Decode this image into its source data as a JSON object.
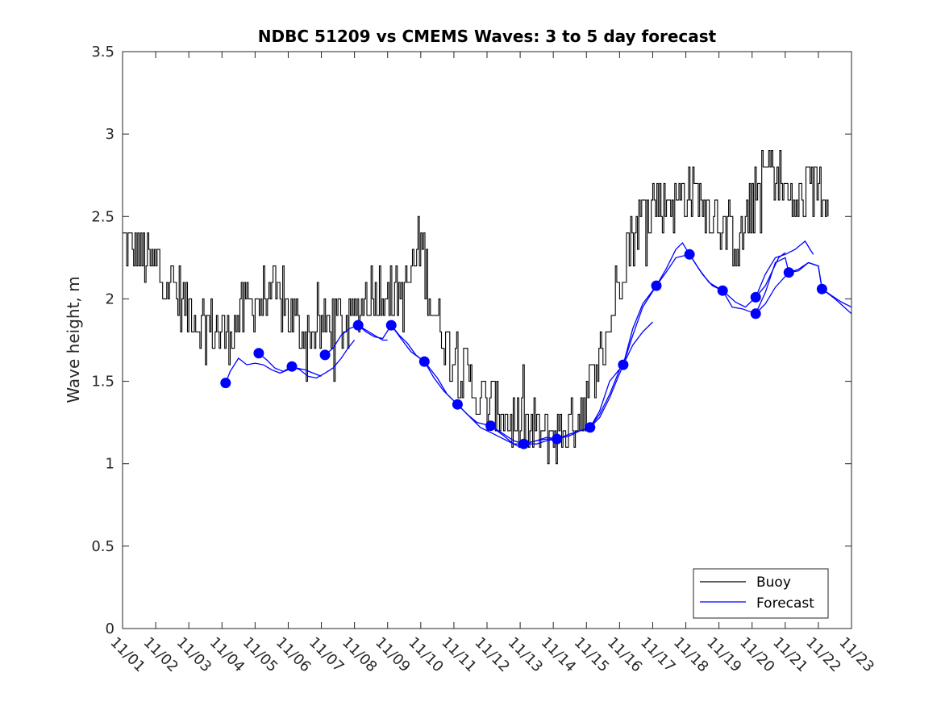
{
  "chart_data": {
    "type": "line",
    "title": "NDBC 51209 vs CMEMS Waves: 3 to 5 day forecast",
    "xlabel": "",
    "ylabel": "Wave height, m",
    "xlim": [
      0,
      22
    ],
    "ylim": [
      0,
      3.5
    ],
    "grid": false,
    "legend_position": "bottom-right",
    "x_tick_labels": [
      "11/01",
      "11/02",
      "11/03",
      "11/04",
      "11/05",
      "11/06",
      "11/07",
      "11/08",
      "11/09",
      "11/10",
      "11/11",
      "11/12",
      "11/13",
      "11/14",
      "11/15",
      "11/16",
      "11/17",
      "11/18",
      "11/19",
      "11/20",
      "11/21",
      "11/22",
      "11/23"
    ],
    "y_ticks": [
      0,
      0.5,
      1,
      1.5,
      2,
      2.5,
      3,
      3.5
    ],
    "y_tick_labels": [
      "0",
      "0.5",
      "1",
      "1.5",
      "2",
      "2.5",
      "3",
      "3.5"
    ],
    "colors": {
      "buoy": "#000000",
      "forecast": "#0000ff",
      "axis": "#262626"
    },
    "buoy": {
      "name": "Buoy",
      "anchors": [
        [
          0.0,
          2.35
        ],
        [
          0.25,
          2.3
        ],
        [
          0.5,
          2.3
        ],
        [
          0.75,
          2.2
        ],
        [
          1.0,
          2.2
        ],
        [
          1.25,
          2.15
        ],
        [
          1.5,
          2.1
        ],
        [
          1.75,
          2.0
        ],
        [
          2.0,
          1.95
        ],
        [
          2.25,
          1.85
        ],
        [
          2.5,
          1.85
        ],
        [
          2.75,
          1.82
        ],
        [
          3.0,
          1.8
        ],
        [
          3.25,
          1.8
        ],
        [
          3.5,
          1.9
        ],
        [
          3.75,
          1.95
        ],
        [
          4.0,
          2.0
        ],
        [
          4.25,
          2.0
        ],
        [
          4.5,
          2.0
        ],
        [
          4.75,
          2.0
        ],
        [
          5.0,
          1.95
        ],
        [
          5.25,
          1.85
        ],
        [
          5.5,
          1.8
        ],
        [
          5.75,
          1.8
        ],
        [
          6.0,
          1.82
        ],
        [
          6.25,
          1.85
        ],
        [
          6.5,
          1.85
        ],
        [
          6.75,
          1.85
        ],
        [
          7.0,
          1.9
        ],
        [
          7.25,
          2.0
        ],
        [
          7.5,
          2.05
        ],
        [
          7.75,
          2.05
        ],
        [
          8.0,
          2.05
        ],
        [
          8.25,
          2.0
        ],
        [
          8.5,
          2.0
        ],
        [
          8.75,
          2.2
        ],
        [
          9.0,
          2.35
        ],
        [
          9.25,
          2.05
        ],
        [
          9.5,
          1.85
        ],
        [
          9.75,
          1.75
        ],
        [
          10.0,
          1.65
        ],
        [
          10.25,
          1.55
        ],
        [
          10.5,
          1.5
        ],
        [
          10.75,
          1.4
        ],
        [
          11.0,
          1.35
        ],
        [
          11.25,
          1.35
        ],
        [
          11.5,
          1.3
        ],
        [
          11.75,
          1.25
        ],
        [
          12.0,
          1.22
        ],
        [
          12.25,
          1.2
        ],
        [
          12.5,
          1.2
        ],
        [
          12.75,
          1.18
        ],
        [
          13.0,
          1.18
        ],
        [
          13.25,
          1.2
        ],
        [
          13.5,
          1.25
        ],
        [
          13.75,
          1.3
        ],
        [
          14.0,
          1.4
        ],
        [
          14.25,
          1.55
        ],
        [
          14.5,
          1.7
        ],
        [
          14.75,
          1.9
        ],
        [
          15.0,
          2.15
        ],
        [
          15.25,
          2.35
        ],
        [
          15.5,
          2.45
        ],
        [
          15.75,
          2.55
        ],
        [
          16.0,
          2.6
        ],
        [
          16.25,
          2.55
        ],
        [
          16.5,
          2.6
        ],
        [
          16.75,
          2.6
        ],
        [
          17.0,
          2.65
        ],
        [
          17.25,
          2.65
        ],
        [
          17.5,
          2.6
        ],
        [
          17.75,
          2.55
        ],
        [
          18.0,
          2.5
        ],
        [
          18.25,
          2.4
        ],
        [
          18.5,
          2.35
        ],
        [
          18.75,
          2.4
        ],
        [
          19.0,
          2.55
        ],
        [
          19.25,
          2.7
        ],
        [
          19.5,
          2.8
        ],
        [
          19.75,
          2.75
        ],
        [
          20.0,
          2.65
        ],
        [
          20.25,
          2.55
        ],
        [
          20.5,
          2.6
        ],
        [
          20.75,
          2.65
        ],
        [
          21.0,
          2.7
        ],
        [
          21.3,
          2.65
        ]
      ]
    },
    "forecast": {
      "name": "Forecast",
      "daily_markers": [
        [
          3.11,
          1.49
        ],
        [
          4.11,
          1.67
        ],
        [
          5.11,
          1.59
        ],
        [
          6.11,
          1.66
        ],
        [
          7.11,
          1.84
        ],
        [
          8.11,
          1.84
        ],
        [
          9.11,
          1.62
        ],
        [
          10.11,
          1.36
        ],
        [
          11.11,
          1.23
        ],
        [
          12.11,
          1.12
        ],
        [
          13.11,
          1.15
        ],
        [
          14.11,
          1.22
        ],
        [
          15.11,
          1.6
        ],
        [
          16.11,
          2.08
        ],
        [
          17.11,
          2.27
        ],
        [
          18.11,
          2.05
        ],
        [
          19.11,
          2.01
        ],
        [
          19.11,
          1.91
        ],
        [
          20.11,
          2.16
        ],
        [
          21.11,
          2.06
        ]
      ],
      "runs": [
        [
          [
            3.11,
            1.49
          ],
          [
            3.25,
            1.56
          ],
          [
            3.5,
            1.64
          ],
          [
            3.75,
            1.6
          ],
          [
            4.0,
            1.61
          ],
          [
            4.25,
            1.6
          ],
          [
            4.5,
            1.57
          ],
          [
            4.75,
            1.55
          ],
          [
            5.0,
            1.57
          ],
          [
            5.25,
            1.58
          ],
          [
            5.5,
            1.57
          ],
          [
            5.75,
            1.55
          ],
          [
            6.0,
            1.53
          ]
        ],
        [
          [
            4.11,
            1.67
          ],
          [
            4.35,
            1.63
          ],
          [
            4.6,
            1.58
          ],
          [
            4.85,
            1.56
          ],
          [
            5.11,
            1.59
          ],
          [
            5.35,
            1.57
          ],
          [
            5.6,
            1.53
          ],
          [
            5.85,
            1.52
          ],
          [
            6.11,
            1.55
          ],
          [
            6.35,
            1.58
          ],
          [
            6.6,
            1.64
          ],
          [
            6.8,
            1.7
          ],
          [
            7.0,
            1.75
          ]
        ],
        [
          [
            6.11,
            1.66
          ],
          [
            6.35,
            1.7
          ],
          [
            6.6,
            1.78
          ],
          [
            6.85,
            1.82
          ],
          [
            7.11,
            1.84
          ],
          [
            7.35,
            1.8
          ],
          [
            7.6,
            1.77
          ],
          [
            7.85,
            1.76
          ],
          [
            8.11,
            1.84
          ],
          [
            8.35,
            1.78
          ],
          [
            8.6,
            1.73
          ],
          [
            8.85,
            1.66
          ],
          [
            9.11,
            1.62
          ]
        ],
        [
          [
            7.11,
            1.84
          ],
          [
            7.35,
            1.81
          ],
          [
            7.6,
            1.78
          ],
          [
            7.85,
            1.75
          ],
          [
            8.0,
            1.75
          ]
        ],
        [
          [
            8.11,
            1.84
          ],
          [
            8.4,
            1.76
          ],
          [
            8.7,
            1.68
          ],
          [
            9.11,
            1.62
          ],
          [
            9.5,
            1.52
          ],
          [
            9.8,
            1.42
          ],
          [
            10.11,
            1.36
          ],
          [
            10.5,
            1.28
          ],
          [
            10.8,
            1.22
          ],
          [
            11.11,
            1.19
          ],
          [
            11.5,
            1.15
          ],
          [
            11.8,
            1.12
          ],
          [
            12.0,
            1.1
          ]
        ],
        [
          [
            9.11,
            1.62
          ],
          [
            9.4,
            1.52
          ],
          [
            9.7,
            1.44
          ],
          [
            10.11,
            1.36
          ],
          [
            10.4,
            1.3
          ],
          [
            10.7,
            1.25
          ],
          [
            11.11,
            1.23
          ],
          [
            11.5,
            1.18
          ],
          [
            11.8,
            1.14
          ],
          [
            12.11,
            1.12
          ],
          [
            12.5,
            1.12
          ],
          [
            12.8,
            1.14
          ],
          [
            13.11,
            1.15
          ]
        ],
        [
          [
            11.11,
            1.23
          ],
          [
            11.5,
            1.17
          ],
          [
            11.8,
            1.12
          ],
          [
            12.11,
            1.12
          ],
          [
            12.5,
            1.14
          ],
          [
            12.8,
            1.15
          ],
          [
            13.11,
            1.15
          ],
          [
            13.5,
            1.18
          ],
          [
            13.8,
            1.2
          ],
          [
            14.11,
            1.22
          ],
          [
            14.4,
            1.3
          ],
          [
            14.7,
            1.42
          ],
          [
            15.0,
            1.57
          ]
        ],
        [
          [
            12.11,
            1.12
          ],
          [
            12.5,
            1.14
          ],
          [
            12.8,
            1.16
          ],
          [
            13.11,
            1.15
          ],
          [
            13.5,
            1.17
          ],
          [
            13.8,
            1.2
          ],
          [
            14.11,
            1.22
          ],
          [
            14.4,
            1.28
          ],
          [
            14.7,
            1.4
          ],
          [
            15.11,
            1.6
          ],
          [
            15.4,
            1.72
          ],
          [
            15.7,
            1.8
          ],
          [
            16.0,
            1.86
          ]
        ],
        [
          [
            14.11,
            1.22
          ],
          [
            14.4,
            1.32
          ],
          [
            14.7,
            1.5
          ],
          [
            15.11,
            1.6
          ],
          [
            15.4,
            1.78
          ],
          [
            15.7,
            1.95
          ],
          [
            16.11,
            2.08
          ],
          [
            16.4,
            2.16
          ],
          [
            16.7,
            2.25
          ],
          [
            17.11,
            2.27
          ],
          [
            17.5,
            2.15
          ],
          [
            17.8,
            2.08
          ],
          [
            18.11,
            2.05
          ],
          [
            18.5,
            1.98
          ],
          [
            18.8,
            1.95
          ],
          [
            19.11,
            2.01
          ],
          [
            19.4,
            2.08
          ],
          [
            19.8,
            2.25
          ],
          [
            20.0,
            2.28
          ]
        ],
        [
          [
            15.11,
            1.6
          ],
          [
            15.4,
            1.82
          ],
          [
            15.7,
            1.97
          ],
          [
            16.11,
            2.08
          ],
          [
            16.4,
            2.18
          ],
          [
            16.7,
            2.3
          ],
          [
            16.9,
            2.34
          ],
          [
            17.11,
            2.27
          ],
          [
            17.4,
            2.18
          ],
          [
            17.7,
            2.1
          ],
          [
            18.11,
            2.05
          ],
          [
            18.4,
            1.95
          ],
          [
            18.7,
            1.94
          ],
          [
            19.11,
            1.91
          ],
          [
            19.4,
            1.97
          ],
          [
            19.7,
            2.07
          ],
          [
            20.11,
            2.16
          ],
          [
            20.4,
            2.17
          ],
          [
            20.7,
            2.22
          ],
          [
            21.0,
            2.2
          ],
          [
            21.11,
            2.06
          ],
          [
            21.5,
            2.0
          ],
          [
            22.0,
            1.91
          ]
        ],
        [
          [
            19.11,
            1.91
          ],
          [
            19.4,
            2.04
          ],
          [
            19.7,
            2.22
          ],
          [
            20.0,
            2.25
          ],
          [
            20.11,
            2.16
          ],
          [
            20.4,
            2.18
          ],
          [
            20.7,
            2.22
          ],
          [
            21.0,
            2.2
          ],
          [
            21.11,
            2.06
          ],
          [
            21.4,
            2.02
          ],
          [
            21.7,
            1.98
          ],
          [
            22.0,
            1.95
          ]
        ],
        [
          [
            19.11,
            2.01
          ],
          [
            19.4,
            2.15
          ],
          [
            19.7,
            2.25
          ],
          [
            20.0,
            2.27
          ],
          [
            20.3,
            2.3
          ],
          [
            20.6,
            2.35
          ],
          [
            20.75,
            2.3
          ],
          [
            20.85,
            2.27
          ]
        ]
      ]
    }
  }
}
